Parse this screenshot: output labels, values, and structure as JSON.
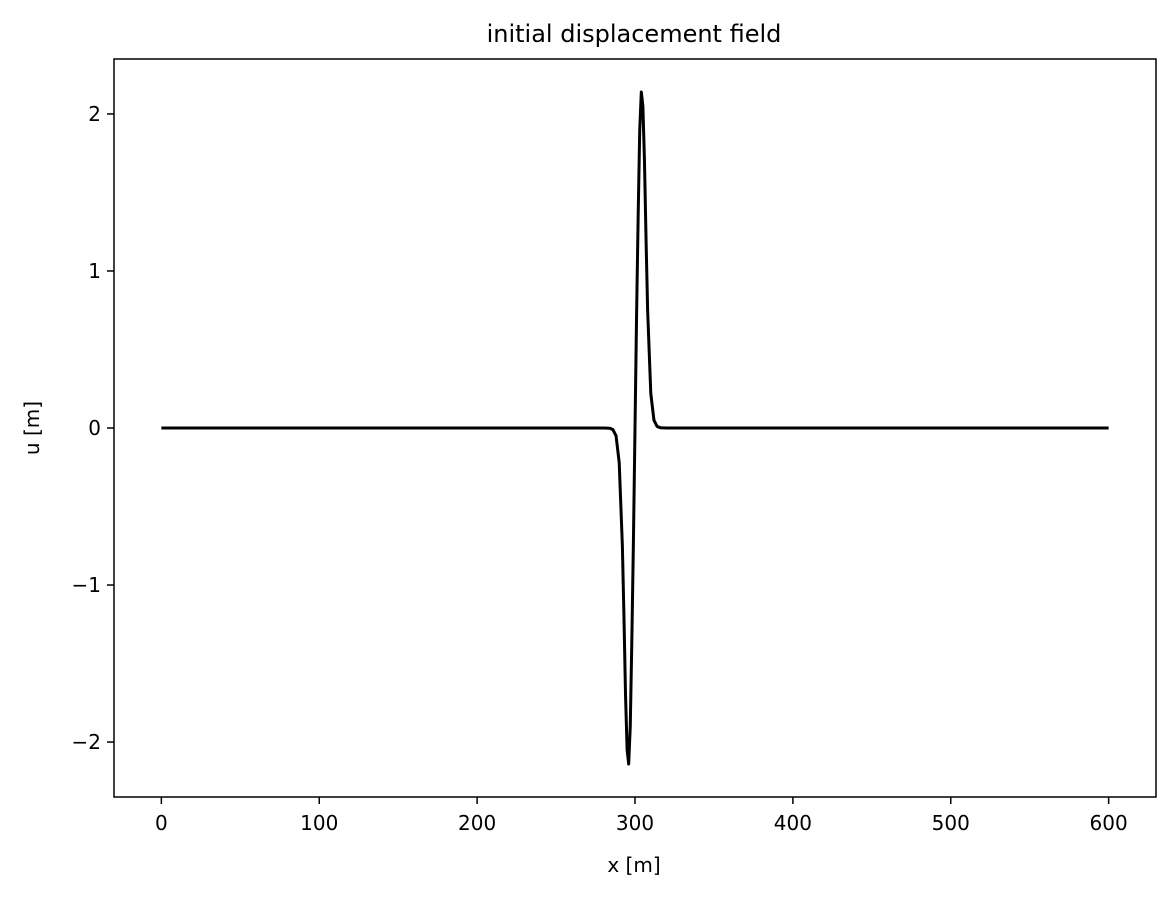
{
  "chart_data": {
    "type": "line",
    "title": "initial displacement field",
    "xlabel": "x [m]",
    "ylabel": "u [m]",
    "xlim": [
      -30,
      630
    ],
    "ylim": [
      -2.35,
      2.35
    ],
    "xticks": [
      0,
      100,
      200,
      300,
      400,
      500,
      600
    ],
    "xtick_labels": [
      "0",
      "100",
      "200",
      "300",
      "400",
      "500",
      "600"
    ],
    "yticks": [
      -2,
      -1,
      0,
      1,
      2
    ],
    "ytick_labels": [
      "−2",
      "−1",
      "0",
      "1",
      "2"
    ],
    "grid": false,
    "series": [
      {
        "color": "#000000",
        "x": [
          0,
          100,
          200,
          280,
          284,
          286,
          288,
          290,
          292,
          293,
          294,
          295,
          296,
          297,
          298,
          299,
          300,
          301,
          302,
          303,
          304,
          305,
          306,
          307,
          308,
          310,
          312,
          314,
          316,
          320,
          400,
          500,
          600
        ],
        "y": [
          0,
          0,
          0,
          0,
          -0.002,
          -0.01,
          -0.05,
          -0.22,
          -0.75,
          -1.2,
          -1.7,
          -2.05,
          -2.14,
          -1.9,
          -1.35,
          -0.72,
          0,
          0.72,
          1.35,
          1.9,
          2.14,
          2.05,
          1.7,
          1.2,
          0.75,
          0.22,
          0.05,
          0.01,
          0.002,
          0,
          0,
          0,
          0
        ]
      }
    ]
  }
}
